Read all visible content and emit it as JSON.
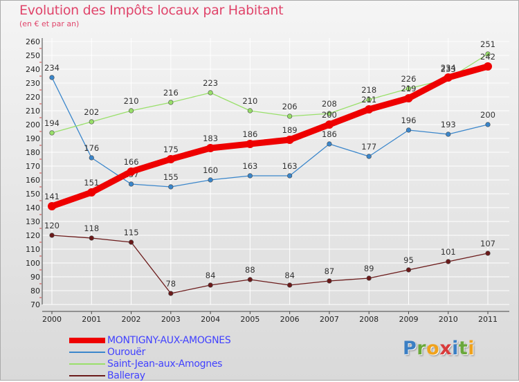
{
  "title": "Evolution des Impôts locaux par Habitant",
  "subtitle": "(en € et par an)",
  "logo": {
    "letters": [
      {
        "char": "P",
        "color": "#3b7fc4"
      },
      {
        "char": "r",
        "color": "#6aa83b"
      },
      {
        "char": "o",
        "color": "#f0a21c"
      },
      {
        "char": "x",
        "color": "#d93b3b"
      },
      {
        "char": "i",
        "color": "#3b7fc4"
      },
      {
        "char": "t",
        "color": "#6aa83b"
      },
      {
        "char": "i",
        "color": "#f0a21c"
      }
    ]
  },
  "chart_data": {
    "type": "line",
    "title": "Evolution des Impôts locaux par Habitant",
    "subtitle": "(en € et par an)",
    "x": [
      "2000",
      "2001",
      "2002",
      "2003",
      "2004",
      "2005",
      "2006",
      "2007",
      "2008",
      "2009",
      "2010",
      "2011"
    ],
    "ylim": [
      70,
      260
    ],
    "yticks": [
      70,
      80,
      90,
      100,
      110,
      120,
      130,
      140,
      150,
      160,
      170,
      180,
      190,
      200,
      210,
      220,
      230,
      240,
      250,
      260
    ],
    "grid": true,
    "legend": "bottom-left",
    "series": [
      {
        "name": "MONTIGNY-AUX-AMOGNES",
        "color": "#ee0000",
        "label_color": "#4141ff",
        "bold": true,
        "values": [
          141,
          151,
          166,
          175,
          183,
          186,
          189,
          200,
          211,
          219,
          234,
          242
        ]
      },
      {
        "name": "Ourouër",
        "color": "#3a86cb",
        "label_color": "#4141ff",
        "bold": false,
        "values": [
          234,
          176,
          157,
          155,
          160,
          163,
          163,
          186,
          177,
          196,
          193,
          200
        ]
      },
      {
        "name": "Saint-Jean-aux-Amognes",
        "color": "#99e06a",
        "label_color": "#4141ff",
        "bold": false,
        "values": [
          194,
          202,
          210,
          216,
          223,
          210,
          206,
          208,
          218,
          226,
          233,
          251
        ]
      },
      {
        "name": "Balleray",
        "color": "#6b1a1a",
        "label_color": "#4141ff",
        "bold": false,
        "values": [
          120,
          118,
          115,
          78,
          84,
          88,
          84,
          87,
          89,
          95,
          101,
          107
        ]
      }
    ]
  }
}
